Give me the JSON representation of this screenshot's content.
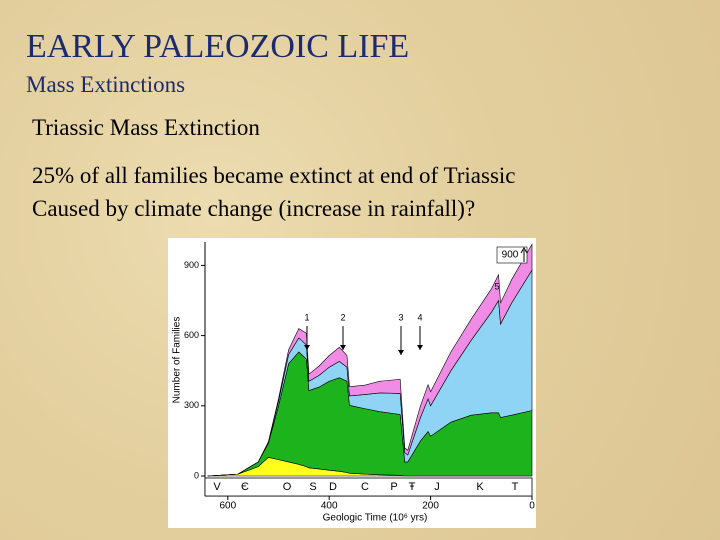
{
  "slide": {
    "title": "EARLY PALEOZOIC LIFE",
    "subtitle": "Mass Extinctions",
    "heading": "Triassic Mass Extinction",
    "lines": [
      "25% of all families became extinct at end of Triassic",
      "Caused by climate change (increase in rainfall)?"
    ]
  },
  "chart_data": {
    "type": "stacked-area",
    "x_label": "Geologic Time (10⁶ yrs)",
    "y_label": "Number of Families",
    "x": [
      640,
      580,
      540,
      520,
      500,
      480,
      460,
      445,
      440,
      420,
      400,
      380,
      365,
      360,
      330,
      300,
      260,
      251,
      245,
      220,
      205,
      200,
      160,
      120,
      80,
      66,
      62,
      40,
      0
    ],
    "series": [
      {
        "color": "#ffff1a",
        "values": [
          0,
          8,
          40,
          80,
          70,
          60,
          50,
          40,
          35,
          30,
          25,
          20,
          15,
          12,
          8,
          5,
          3,
          0,
          0,
          0,
          0,
          0,
          0,
          0,
          0,
          0,
          0,
          0,
          0
        ]
      },
      {
        "color": "#1db31d",
        "values": [
          0,
          0,
          20,
          60,
          230,
          420,
          480,
          460,
          330,
          350,
          380,
          400,
          390,
          290,
          280,
          270,
          260,
          60,
          60,
          150,
          190,
          170,
          230,
          260,
          270,
          270,
          250,
          260,
          280
        ]
      },
      {
        "color": "#8fd3f5",
        "values": [
          0,
          0,
          0,
          5,
          20,
          40,
          60,
          60,
          40,
          50,
          60,
          70,
          60,
          40,
          60,
          80,
          90,
          40,
          30,
          100,
          140,
          130,
          220,
          320,
          430,
          480,
          400,
          480,
          600
        ]
      },
      {
        "color": "#f08ce6",
        "values": [
          0,
          0,
          0,
          0,
          10,
          20,
          40,
          50,
          30,
          40,
          50,
          60,
          50,
          40,
          40,
          50,
          60,
          20,
          20,
          50,
          60,
          60,
          80,
          90,
          100,
          110,
          90,
          100,
          110
        ]
      }
    ],
    "xlim": [
      645,
      0
    ],
    "ylim": [
      0,
      1000
    ],
    "xticks": [
      600,
      400,
      200,
      0
    ],
    "yticks": [
      0,
      300,
      600,
      900
    ],
    "periods": [
      "V",
      "Є",
      "O",
      "S",
      "D",
      "C",
      "P",
      "Ŧ",
      "J",
      "K",
      "T"
    ],
    "extinctions": [
      "1",
      "2",
      "3",
      "4",
      "5"
    ],
    "annotations": [
      "900"
    ]
  }
}
